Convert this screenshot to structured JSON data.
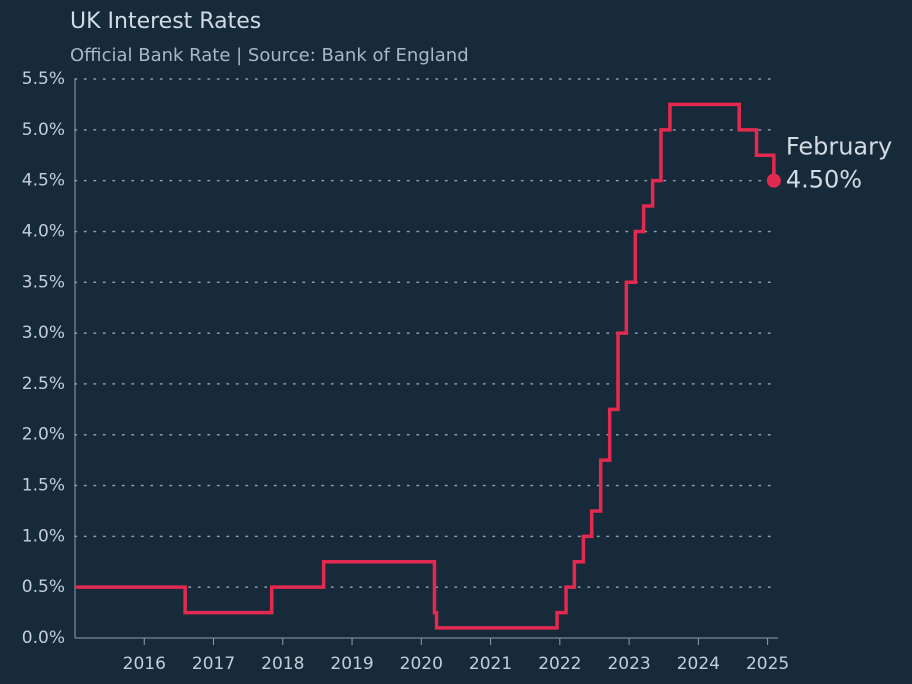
{
  "chart_data": {
    "type": "step-line",
    "title": "UK Interest Rates",
    "subtitle": "Official Bank Rate | Source: Bank of England",
    "x": [
      2015.0,
      2016.59,
      2017.84,
      2018.59,
      2020.19,
      2020.22,
      2021.96,
      2022.09,
      2022.21,
      2022.34,
      2022.46,
      2022.59,
      2022.72,
      2022.84,
      2022.96,
      2023.09,
      2023.21,
      2023.34,
      2023.46,
      2023.59,
      2024.59,
      2024.84,
      2025.09
    ],
    "values": [
      0.5,
      0.25,
      0.5,
      0.75,
      0.25,
      0.1,
      0.25,
      0.5,
      0.75,
      1.0,
      1.25,
      1.75,
      2.25,
      3.0,
      3.5,
      4.0,
      4.25,
      4.5,
      5.0,
      5.25,
      5.0,
      4.75,
      4.5
    ],
    "value_labels": [
      null,
      null,
      null,
      null,
      null,
      null,
      null,
      null,
      null,
      null,
      null,
      null,
      null,
      null,
      null,
      null,
      null,
      null,
      null,
      null,
      null,
      null,
      "4.50%"
    ],
    "annotation": "February",
    "color": "#e3294f",
    "xlim": [
      2015.0,
      2025.15
    ],
    "xticks": [
      2016,
      2017,
      2018,
      2019,
      2020,
      2021,
      2022,
      2023,
      2024,
      2025
    ],
    "ylim": [
      0,
      5.5
    ],
    "yticks": [
      {
        "value": 0,
        "label": "0.0%"
      },
      {
        "value": 0.5,
        "label": "0.5%"
      },
      {
        "value": 1.0,
        "label": "1.0%"
      },
      {
        "value": 1.5,
        "label": "1.5%"
      },
      {
        "value": 2.0,
        "label": "2.0%"
      },
      {
        "value": 2.5,
        "label": "2.5%"
      },
      {
        "value": 3.0,
        "label": "3.0%"
      },
      {
        "value": 3.5,
        "label": "3.5%"
      },
      {
        "value": 4.0,
        "label": "4.0%"
      },
      {
        "value": 4.5,
        "label": "4.5%"
      },
      {
        "value": 5.0,
        "label": "5.0%"
      },
      {
        "value": 5.5,
        "label": "5.5%"
      }
    ],
    "grid": true
  }
}
